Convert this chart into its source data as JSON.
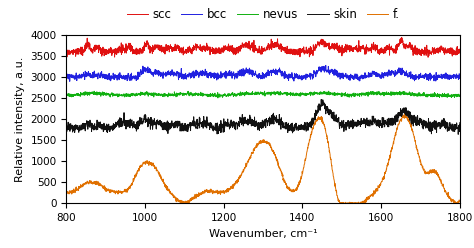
{
  "title": "",
  "xlabel": "Wavenumber, cm⁻¹",
  "ylabel": "Relative intensity, a.u.",
  "xlim": [
    800,
    1800
  ],
  "ylim": [
    0,
    4000
  ],
  "yticks": [
    0,
    500,
    1000,
    1500,
    2000,
    2500,
    3000,
    3500,
    4000
  ],
  "xticks": [
    800,
    1000,
    1200,
    1400,
    1600,
    1800
  ],
  "legend_labels": [
    "scc",
    "bcc",
    "nevus",
    "skin",
    "f."
  ],
  "legend_colors": [
    "#e01010",
    "#2020e0",
    "#10b010",
    "#101010",
    "#e07000"
  ],
  "line_colors": [
    "#e01010",
    "#2020e0",
    "#10b010",
    "#101010",
    "#e07000"
  ],
  "figsize": [
    4.74,
    2.48
  ],
  "dpi": 100
}
